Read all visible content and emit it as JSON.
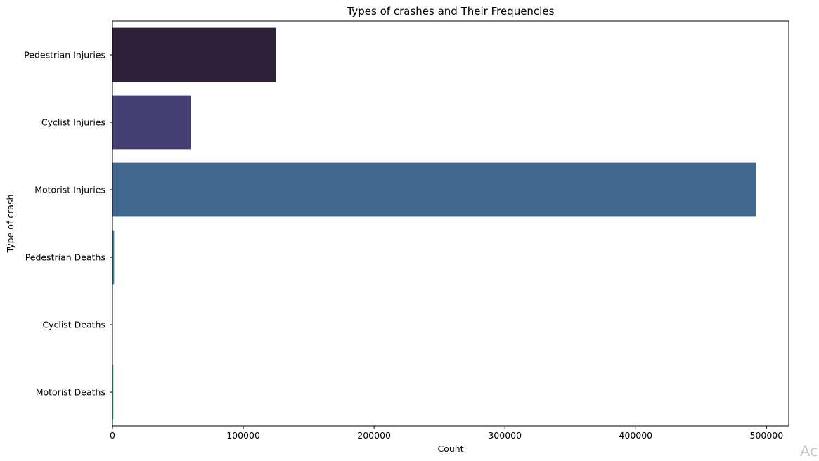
{
  "chart_data": {
    "type": "bar",
    "orientation": "horizontal",
    "title": "Types of crashes and Their Frequencies",
    "xlabel": "Count",
    "ylabel": "Type of crash",
    "xlim": [
      0,
      517000
    ],
    "xticks": [
      0,
      100000,
      200000,
      300000,
      400000,
      500000
    ],
    "xtick_labels": [
      "0",
      "100000",
      "200000",
      "300000",
      "400000",
      "500000"
    ],
    "grid": false,
    "categories": [
      "Pedestrian Injuries",
      "Cyclist Injuries",
      "Motorist Injuries",
      "Pedestrian Deaths",
      "Cyclist Deaths",
      "Motorist Deaths"
    ],
    "values": [
      125000,
      60000,
      492000,
      1300,
      150,
      700
    ],
    "colors": [
      "#2e2039",
      "#433f72",
      "#43688f",
      "#3b8a9c",
      "#43a8a4",
      "#4fc19a"
    ]
  },
  "watermark": {
    "text": "Ac"
  }
}
